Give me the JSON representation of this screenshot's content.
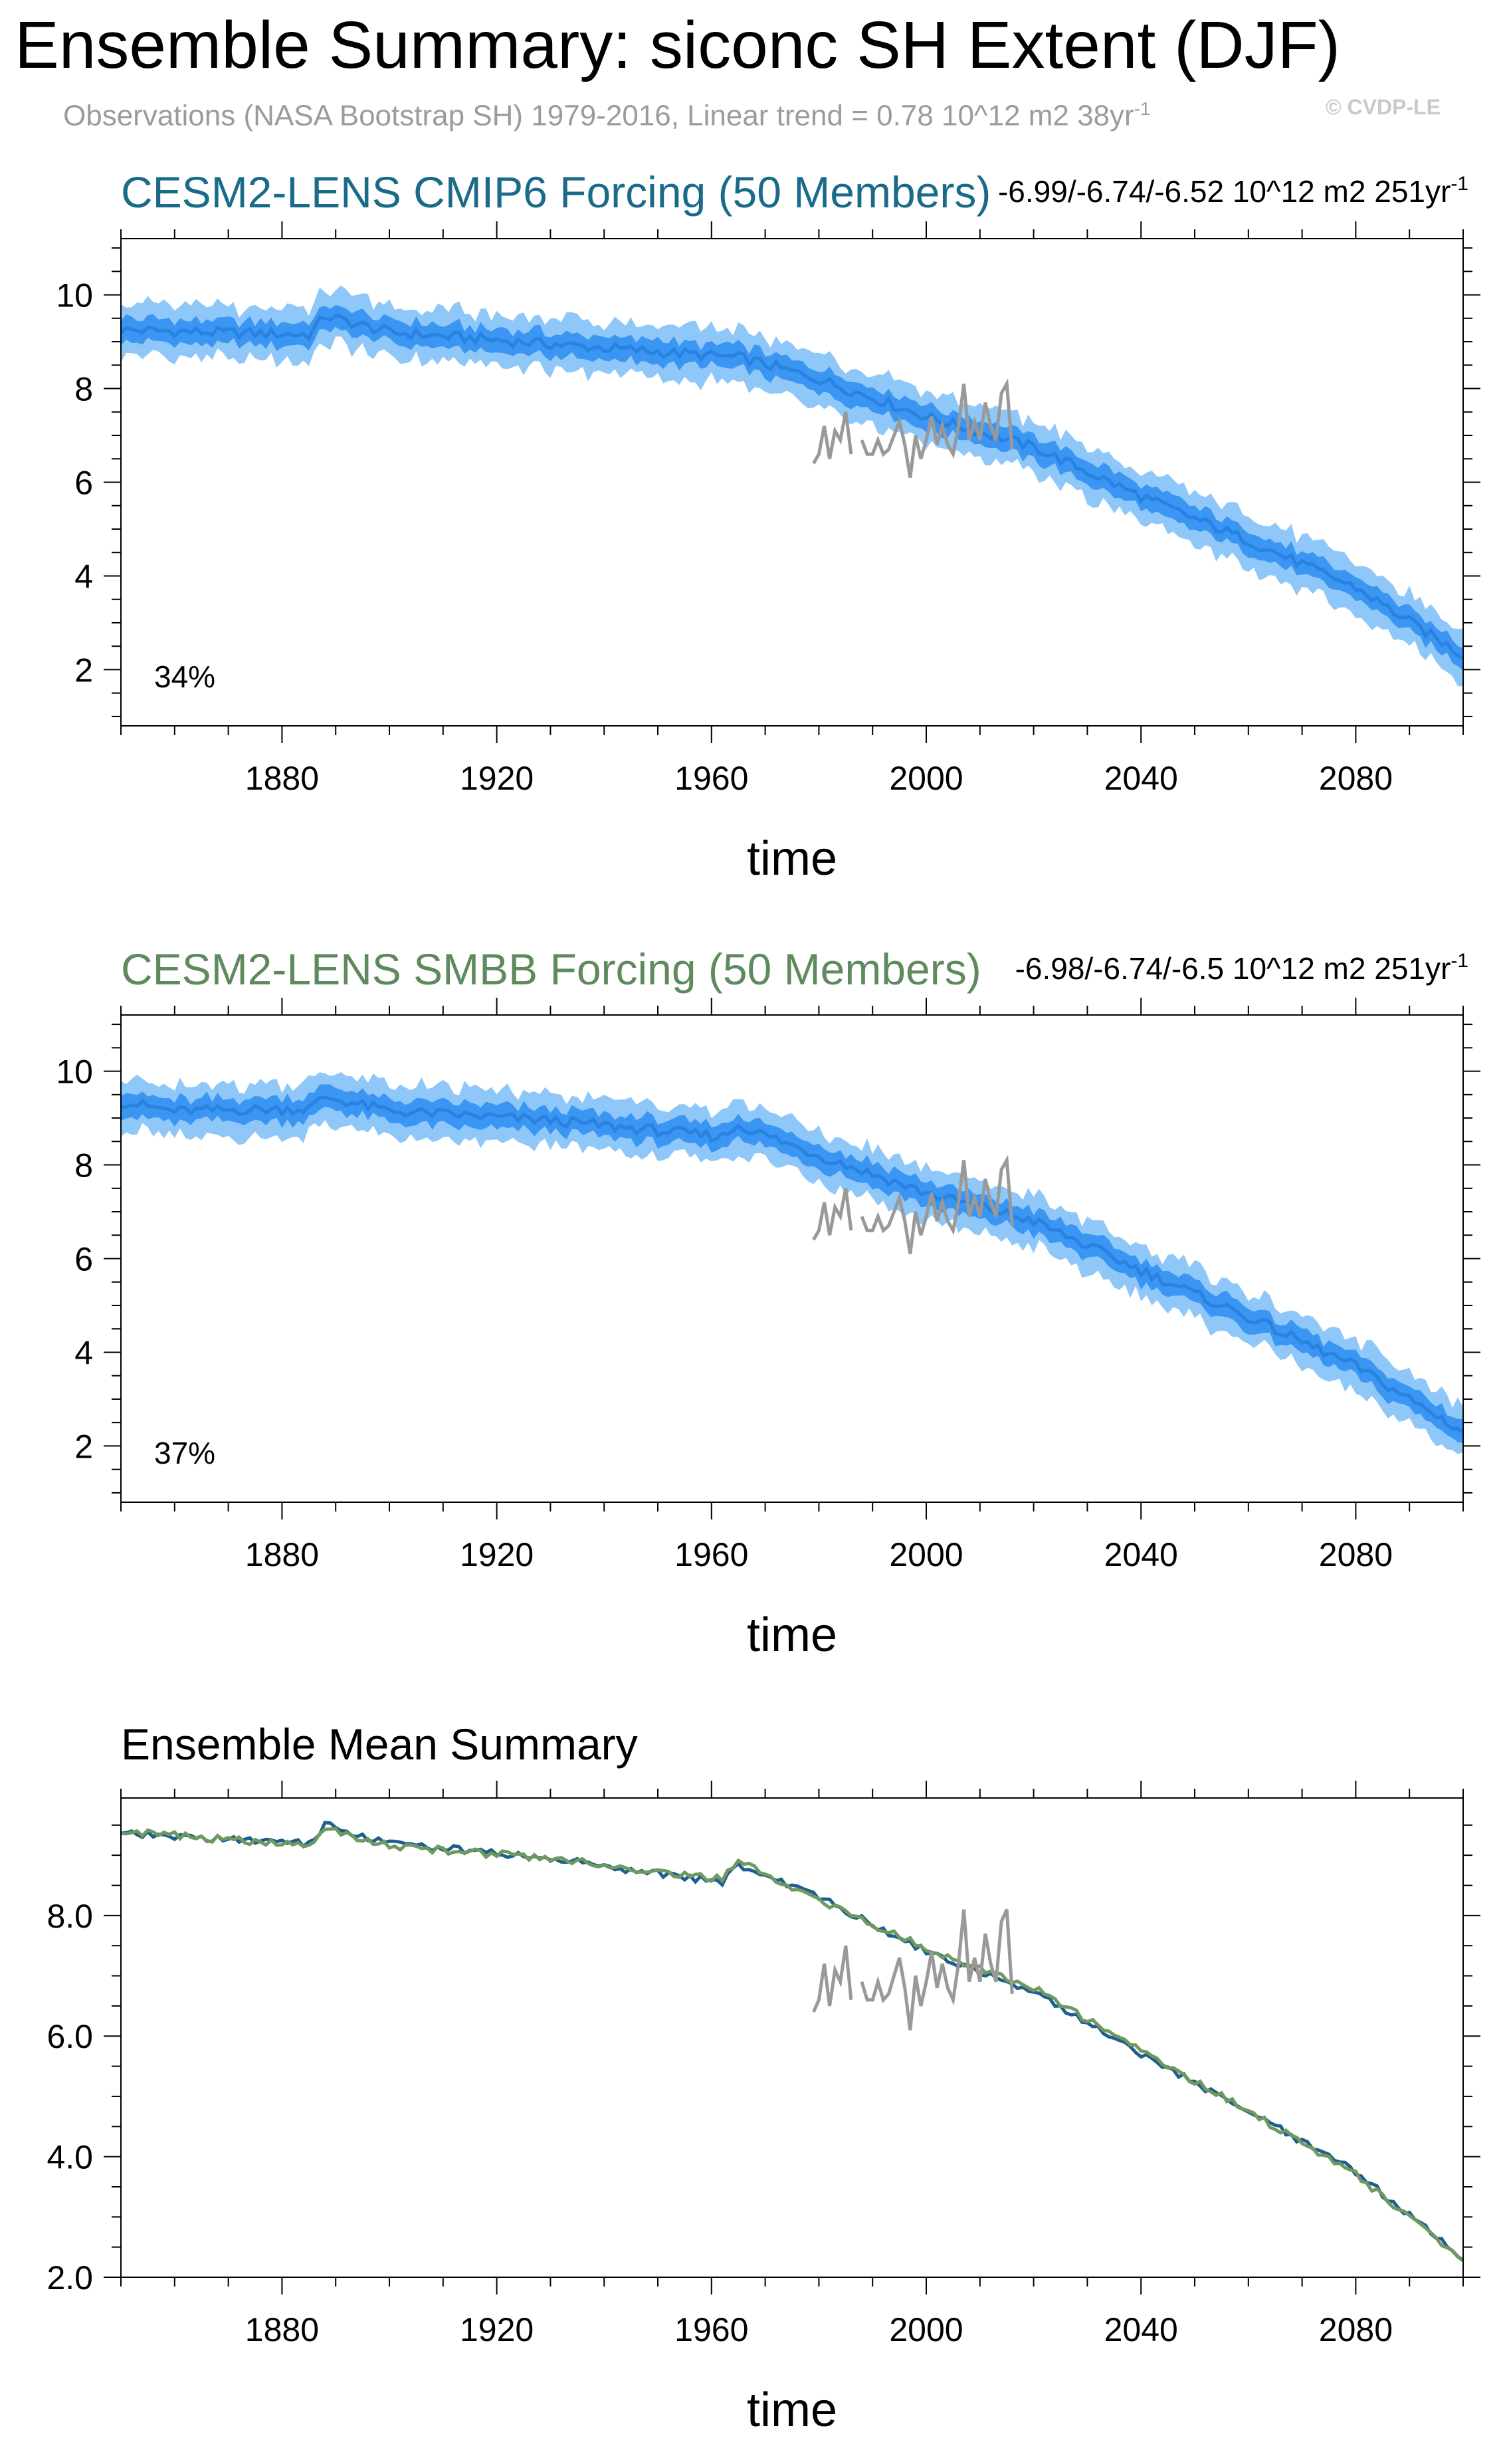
{
  "title": "Ensemble Summary: siconc SH Extent (DJF)",
  "subtitle": "Observations (NASA Bootstrap SH) 1979-2016, Linear trend = 0.78 10^12 m2 38yr",
  "subtitle_sup": "-1",
  "watermark": "© CVDP-LE",
  "colors": {
    "cmip6_title": "#1a6a8a",
    "smbb_title": "#5e8a5e",
    "spread_outer": "#8fc8f8",
    "spread_inner": "#3a96f2",
    "ens_mean": "#2a82e0",
    "obs": "#999999",
    "mean_cmip6": "#1f5f8f",
    "mean_smbb": "#6e9a60"
  },
  "chart_data": [
    {
      "type": "area",
      "id": "cmip6",
      "title": "CESM2-LENS CMIP6 Forcing (50 Members)",
      "trend_text": "-6.99/-6.74/-6.52 10^12 m2 251yr",
      "trend_sup": "-1",
      "percent_label": "34%",
      "xlabel": "time",
      "ylabel": "",
      "xlim": [
        1850,
        2100
      ],
      "ylim": [
        0.8,
        11.2
      ],
      "xticks": [
        1880,
        1920,
        1960,
        2000,
        2040,
        2080
      ],
      "yticks": [
        2,
        4,
        6,
        8,
        10
      ],
      "ytick_labels": [
        "2",
        "4",
        "6",
        "8",
        "10"
      ],
      "mean_keypoints": [
        [
          1850,
          9.25
        ],
        [
          1885,
          9.15
        ],
        [
          1888,
          9.55
        ],
        [
          1900,
          9.2
        ],
        [
          1930,
          8.95
        ],
        [
          1966,
          8.65
        ],
        [
          1980,
          8.2
        ],
        [
          2000,
          7.4
        ],
        [
          2020,
          6.75
        ],
        [
          2040,
          5.7
        ],
        [
          2060,
          4.75
        ],
        [
          2080,
          3.75
        ],
        [
          2100,
          2.3
        ]
      ],
      "spread_inner_halfwidth": 0.25,
      "spread_outer_halfwidth": 0.55,
      "obs": {
        "x": [
          1979,
          1980,
          1981,
          1982,
          1983,
          1984,
          1985,
          1986,
          1987,
          1988,
          1989,
          1990,
          1991,
          1992,
          1993,
          1994,
          1995,
          1996,
          1997,
          1998,
          1999,
          2000,
          2001,
          2002,
          2003,
          2004,
          2005,
          2006,
          2007,
          2008,
          2009,
          2010,
          2011,
          2012,
          2013,
          2014,
          2015,
          2016
        ],
        "y": [
          6.4,
          6.6,
          7.2,
          6.5,
          7.1,
          6.9,
          7.5,
          6.6,
          null,
          6.9,
          6.6,
          6.6,
          6.9,
          6.6,
          6.7,
          7.0,
          7.3,
          6.8,
          6.1,
          7.0,
          6.5,
          6.9,
          7.4,
          6.8,
          7.2,
          6.8,
          6.6,
          7.2,
          8.1,
          6.9,
          7.3,
          6.9,
          7.7,
          7.2,
          6.9,
          7.9,
          8.1,
          6.7
        ]
      }
    },
    {
      "type": "area",
      "id": "smbb",
      "title": "CESM2-LENS SMBB Forcing (50 Members)",
      "trend_text": "-6.98/-6.74/-6.5 10^12 m2 251yr",
      "trend_sup": "-1",
      "percent_label": "37%",
      "xlabel": "time",
      "ylabel": "",
      "xlim": [
        1850,
        2100
      ],
      "ylim": [
        0.8,
        11.2
      ],
      "xticks": [
        1880,
        1920,
        1960,
        2000,
        2040,
        2080
      ],
      "yticks": [
        2,
        4,
        6,
        8,
        10
      ],
      "ytick_labels": [
        "2",
        "4",
        "6",
        "8",
        "10"
      ],
      "mean_keypoints": [
        [
          1850,
          9.35
        ],
        [
          1860,
          9.15
        ],
        [
          1885,
          9.2
        ],
        [
          1888,
          9.45
        ],
        [
          1900,
          9.15
        ],
        [
          1930,
          8.95
        ],
        [
          1962,
          8.6
        ],
        [
          1965,
          8.85
        ],
        [
          1980,
          8.2
        ],
        [
          2000,
          7.4
        ],
        [
          2020,
          6.8
        ],
        [
          2040,
          5.75
        ],
        [
          2060,
          4.75
        ],
        [
          2080,
          3.7
        ],
        [
          2100,
          2.3
        ]
      ],
      "spread_inner_halfwidth": 0.25,
      "spread_outer_halfwidth": 0.55,
      "obs": {
        "x": [
          1979,
          1980,
          1981,
          1982,
          1983,
          1984,
          1985,
          1986,
          1987,
          1988,
          1989,
          1990,
          1991,
          1992,
          1993,
          1994,
          1995,
          1996,
          1997,
          1998,
          1999,
          2000,
          2001,
          2002,
          2003,
          2004,
          2005,
          2006,
          2007,
          2008,
          2009,
          2010,
          2011,
          2012,
          2013,
          2014,
          2015,
          2016
        ],
        "y": [
          6.4,
          6.6,
          7.2,
          6.5,
          7.1,
          6.9,
          7.5,
          6.6,
          null,
          6.9,
          6.6,
          6.6,
          6.9,
          6.6,
          6.7,
          7.0,
          7.3,
          6.8,
          6.1,
          7.0,
          6.5,
          6.9,
          7.4,
          6.8,
          7.2,
          6.8,
          6.6,
          7.2,
          8.1,
          6.9,
          7.3,
          6.9,
          7.7,
          7.2,
          6.9,
          7.9,
          8.1,
          6.7
        ]
      }
    },
    {
      "type": "line",
      "id": "mean",
      "title": "Ensemble Mean Summary",
      "xlabel": "time",
      "ylabel": "",
      "xlim": [
        1850,
        2100
      ],
      "ylim": [
        2.0,
        9.95
      ],
      "xticks": [
        1880,
        1920,
        1960,
        2000,
        2040,
        2080
      ],
      "yticks": [
        2.0,
        4.0,
        6.0,
        8.0
      ],
      "ytick_labels": [
        "2.0",
        "4.0",
        "6.0",
        "8.0"
      ],
      "series": [
        {
          "name": "CESM2-LENS CMIP6 Forcing",
          "keypoints": [
            [
              1850,
              9.35
            ],
            [
              1885,
              9.2
            ],
            [
              1888,
              9.5
            ],
            [
              1900,
              9.2
            ],
            [
              1930,
              8.95
            ],
            [
              1962,
              8.55
            ],
            [
              1965,
              8.85
            ],
            [
              1980,
              8.3
            ],
            [
              2000,
              7.4
            ],
            [
              2020,
              6.75
            ],
            [
              2040,
              5.7
            ],
            [
              2060,
              4.75
            ],
            [
              2080,
              3.75
            ],
            [
              2100,
              2.3
            ]
          ]
        },
        {
          "name": "CESM2-LENS SMBB Forcing",
          "keypoints": [
            [
              1850,
              9.4
            ],
            [
              1885,
              9.15
            ],
            [
              1888,
              9.45
            ],
            [
              1900,
              9.15
            ],
            [
              1930,
              8.95
            ],
            [
              1962,
              8.6
            ],
            [
              1965,
              8.9
            ],
            [
              1980,
              8.25
            ],
            [
              2000,
              7.45
            ],
            [
              2020,
              6.8
            ],
            [
              2040,
              5.75
            ],
            [
              2060,
              4.75
            ],
            [
              2080,
              3.7
            ],
            [
              2100,
              2.3
            ]
          ]
        }
      ],
      "obs": {
        "x": [
          1979,
          1980,
          1981,
          1982,
          1983,
          1984,
          1985,
          1986,
          1987,
          1988,
          1989,
          1990,
          1991,
          1992,
          1993,
          1994,
          1995,
          1996,
          1997,
          1998,
          1999,
          2000,
          2001,
          2002,
          2003,
          2004,
          2005,
          2006,
          2007,
          2008,
          2009,
          2010,
          2011,
          2012,
          2013,
          2014,
          2015,
          2016
        ],
        "y": [
          6.4,
          6.6,
          7.2,
          6.5,
          7.1,
          6.9,
          7.5,
          6.6,
          null,
          6.9,
          6.6,
          6.6,
          6.9,
          6.6,
          6.7,
          7.0,
          7.3,
          6.8,
          6.1,
          7.0,
          6.5,
          6.9,
          7.4,
          6.8,
          7.2,
          6.8,
          6.6,
          7.2,
          8.1,
          6.9,
          7.3,
          6.9,
          7.7,
          7.2,
          6.9,
          7.9,
          8.1,
          6.7
        ]
      }
    }
  ]
}
